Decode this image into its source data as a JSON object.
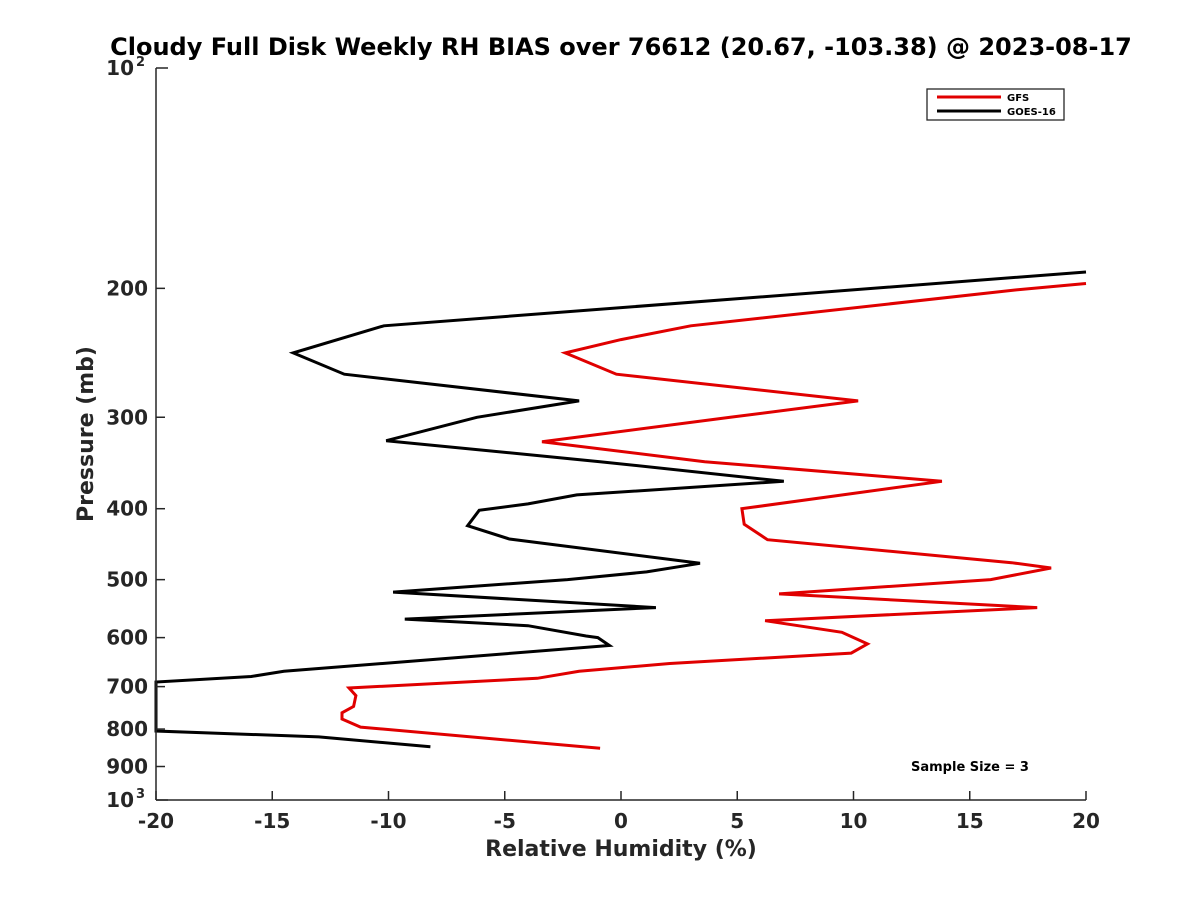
{
  "chart_data": {
    "type": "line",
    "title": "Cloudy Full Disk Weekly RH BIAS over 76612 (20.67, -103.38) @ 2023-08-17",
    "xlabel": "Relative Humidity (%)",
    "ylabel": "Pressure (mb)",
    "xlim": [
      -20,
      20
    ],
    "ylim": [
      100,
      1000
    ],
    "y_scale": "log",
    "y_reversed": true,
    "x_ticks": [
      -20,
      -15,
      -10,
      -5,
      0,
      5,
      10,
      15,
      20
    ],
    "x_tick_labels": [
      "-20",
      "-15",
      "-10",
      "-5",
      "0",
      "5",
      "10",
      "15",
      "20"
    ],
    "y_ticks": [
      200,
      300,
      400,
      500,
      600,
      700,
      800,
      900
    ],
    "y_tick_labels": [
      "200",
      "300",
      "400",
      "500",
      "600",
      "700",
      "800",
      "900"
    ],
    "y_decade_ticks": [
      {
        "value": 100,
        "base": "10",
        "exponent": "2"
      },
      {
        "value": 1000,
        "base": "10",
        "exponent": "3"
      }
    ],
    "legend_position": "top-right",
    "annotation": "Sample Size = 3",
    "series": [
      {
        "name": "GFS",
        "color": "#e00000",
        "points": [
          {
            "rh": 20.0,
            "p": 197
          },
          {
            "rh": 17.0,
            "p": 201
          },
          {
            "rh": 3.0,
            "p": 225
          },
          {
            "rh": 0.0,
            "p": 235
          },
          {
            "rh": -2.4,
            "p": 245
          },
          {
            "rh": -0.2,
            "p": 262
          },
          {
            "rh": 10.2,
            "p": 285
          },
          {
            "rh": 4.7,
            "p": 300
          },
          {
            "rh": -3.4,
            "p": 324
          },
          {
            "rh": 3.6,
            "p": 345
          },
          {
            "rh": 13.8,
            "p": 367
          },
          {
            "rh": 5.2,
            "p": 400
          },
          {
            "rh": 5.3,
            "p": 420
          },
          {
            "rh": 6.3,
            "p": 441
          },
          {
            "rh": 16.8,
            "p": 474
          },
          {
            "rh": 18.5,
            "p": 482
          },
          {
            "rh": 15.9,
            "p": 500
          },
          {
            "rh": 6.8,
            "p": 523
          },
          {
            "rh": 17.9,
            "p": 546
          },
          {
            "rh": 6.2,
            "p": 569
          },
          {
            "rh": 9.5,
            "p": 590
          },
          {
            "rh": 10.6,
            "p": 612
          },
          {
            "rh": 9.9,
            "p": 630
          },
          {
            "rh": 2.1,
            "p": 651
          },
          {
            "rh": -1.8,
            "p": 667
          },
          {
            "rh": -3.6,
            "p": 682
          },
          {
            "rh": -11.7,
            "p": 703
          },
          {
            "rh": -11.4,
            "p": 720
          },
          {
            "rh": -11.5,
            "p": 745
          },
          {
            "rh": -12.0,
            "p": 760
          },
          {
            "rh": -12.0,
            "p": 775
          },
          {
            "rh": -11.2,
            "p": 795
          },
          {
            "rh": -0.9,
            "p": 850
          }
        ]
      },
      {
        "name": "GOES-16",
        "color": "#000000",
        "points": [
          {
            "rh": 20.0,
            "p": 190
          },
          {
            "rh": -10.2,
            "p": 225
          },
          {
            "rh": -14.1,
            "p": 245
          },
          {
            "rh": -11.9,
            "p": 262
          },
          {
            "rh": -1.8,
            "p": 285
          },
          {
            "rh": -6.2,
            "p": 300
          },
          {
            "rh": -10.1,
            "p": 323
          },
          {
            "rh": -0.9,
            "p": 345
          },
          {
            "rh": 7.0,
            "p": 367
          },
          {
            "rh": -1.9,
            "p": 383
          },
          {
            "rh": -4.0,
            "p": 394
          },
          {
            "rh": -6.1,
            "p": 402
          },
          {
            "rh": -6.6,
            "p": 422
          },
          {
            "rh": -4.8,
            "p": 440
          },
          {
            "rh": 3.4,
            "p": 475
          },
          {
            "rh": 1.1,
            "p": 488
          },
          {
            "rh": -2.3,
            "p": 500
          },
          {
            "rh": -9.8,
            "p": 520
          },
          {
            "rh": 1.5,
            "p": 546
          },
          {
            "rh": -9.3,
            "p": 566
          },
          {
            "rh": -4.0,
            "p": 578
          },
          {
            "rh": -1.5,
            "p": 597
          },
          {
            "rh": -1.0,
            "p": 600
          },
          {
            "rh": -0.5,
            "p": 615
          },
          {
            "rh": -8.7,
            "p": 645
          },
          {
            "rh": -14.5,
            "p": 667
          },
          {
            "rh": -15.9,
            "p": 678
          },
          {
            "rh": -20.0,
            "p": 690
          },
          {
            "rh": -20.0,
            "p": 805
          },
          {
            "rh": -13.0,
            "p": 820
          },
          {
            "rh": -8.2,
            "p": 846
          }
        ]
      }
    ]
  }
}
